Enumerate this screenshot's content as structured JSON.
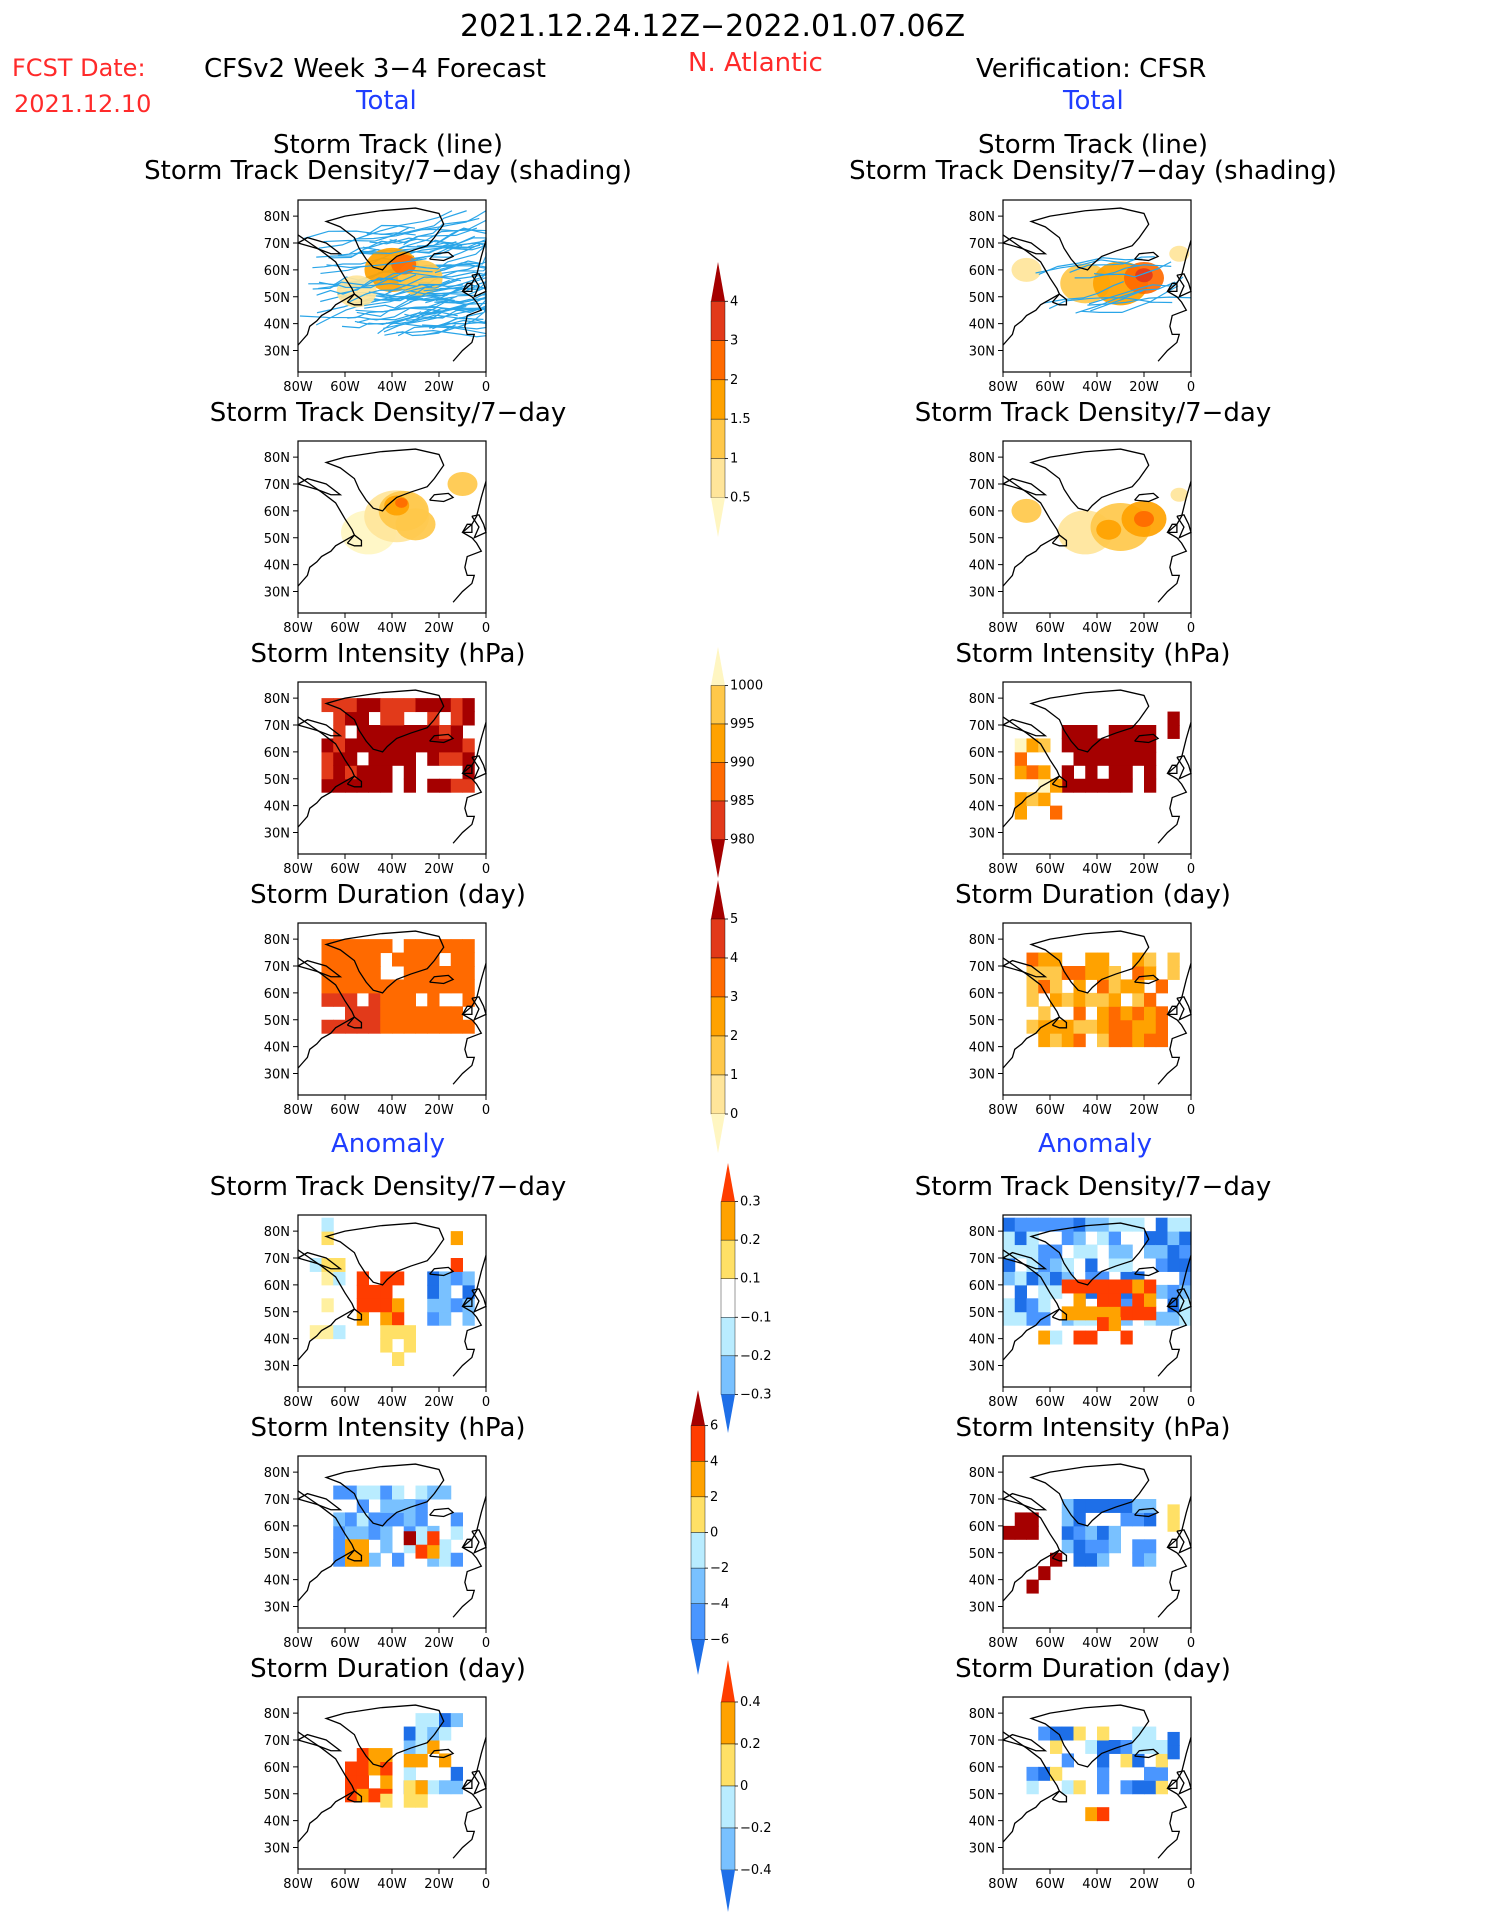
{
  "header": {
    "period": "2021.12.24.12Z−2022.01.07.06Z",
    "region": "N. Atlantic",
    "fcst_label": "FCST Date:",
    "fcst_date": "2021.12.10",
    "left_title": "CFSv2 Week 3−4 Forecast",
    "right_title": "Verification: CFSR",
    "total_label": "Total",
    "anomaly_label": "Anomaly"
  },
  "titles": {
    "track_line": "Storm Track (line)",
    "track_shading": "Storm Track Density/7−day (shading)",
    "density": "Storm Track Density/7−day",
    "intensity": "Storm Intensity (hPa)",
    "duration": "Storm Duration (day)"
  },
  "axes": {
    "lat_labels": [
      "80N",
      "70N",
      "60N",
      "50N",
      "40N",
      "30N"
    ],
    "lon_labels": [
      "80W",
      "60W",
      "40W",
      "20W",
      "0"
    ]
  },
  "colorbars": [
    {
      "id": "density_total",
      "labels": [
        "4",
        "3",
        "2",
        "1.5",
        "1",
        "0.5"
      ],
      "colors": [
        "#a50000",
        "#e23a1a",
        "#ff6a00",
        "#ffa200",
        "#ffc84a",
        "#ffe59a",
        "#fff6c2"
      ]
    },
    {
      "id": "intensity_total",
      "labels": [
        "1000",
        "995",
        "990",
        "985",
        "980"
      ],
      "colors": [
        "#fff6c2",
        "#ffc84a",
        "#ffa200",
        "#ff6a00",
        "#e23a1a",
        "#a50000"
      ]
    },
    {
      "id": "duration_total",
      "labels": [
        "5",
        "4",
        "3",
        "2",
        "1",
        "0"
      ],
      "colors": [
        "#a50000",
        "#e23a1a",
        "#ff6a00",
        "#ffa200",
        "#ffc84a",
        "#ffe59a",
        "#fff6c2"
      ]
    },
    {
      "id": "density_anom",
      "labels": [
        "0.3",
        "0.2",
        "0.1",
        "−0.1",
        "−0.2",
        "−0.3"
      ],
      "colors": [
        "#ff3d00",
        "#ffa200",
        "#ffe066",
        "#ffffff",
        "#b9ecff",
        "#79c1ff",
        "#1e6fe8"
      ]
    },
    {
      "id": "intensity_anom",
      "labels": [
        "6",
        "4",
        "2",
        "0",
        "−2",
        "−4",
        "−6"
      ],
      "colors": [
        "#a50000",
        "#ff3d00",
        "#ffa200",
        "#ffe066",
        "#b9ecff",
        "#79c1ff",
        "#4a96ff",
        "#1e6fe8"
      ]
    },
    {
      "id": "duration_anom",
      "labels": [
        "0.4",
        "0.2",
        "0",
        "−0.2",
        "−0.4"
      ],
      "colors": [
        "#ff3d00",
        "#ffa200",
        "#ffe066",
        "#b9ecff",
        "#79c1ff",
        "#1e6fe8"
      ]
    }
  ],
  "chart_data": [
    {
      "type": "heatmap",
      "title": "Storm Track (line) / Storm Track Density/7−day (shading)",
      "side": "forecast",
      "section": "Total",
      "blobs": [
        {
          "lon": -40,
          "lat": 60,
          "level": 2
        },
        {
          "lon": -28,
          "lat": 58,
          "level": 1.5
        },
        {
          "lon": -55,
          "lat": 52,
          "level": 1
        },
        {
          "lon": -15,
          "lat": 68,
          "level": 1
        }
      ]
    },
    {
      "type": "heatmap",
      "title": "Storm Track (line) / Storm Track Density/7−day (shading)",
      "side": "verification",
      "section": "Total",
      "blobs": [
        {
          "lon": -30,
          "lat": 55,
          "level": 2
        },
        {
          "lon": -20,
          "lat": 57,
          "level": 3
        },
        {
          "lon": -45,
          "lat": 55,
          "level": 1.5
        },
        {
          "lon": -70,
          "lat": 60,
          "level": 1
        }
      ]
    },
    {
      "type": "heatmap",
      "title": "Storm Track Density/7−day",
      "side": "forecast",
      "section": "Total",
      "blobs": [
        {
          "lon": -38,
          "lat": 62,
          "level": 2
        },
        {
          "lon": -30,
          "lat": 56,
          "level": 1.5
        },
        {
          "lon": -10,
          "lat": 70,
          "level": 1
        },
        {
          "lon": -55,
          "lat": 52,
          "level": 0.5
        }
      ]
    },
    {
      "type": "heatmap",
      "title": "Storm Track Density/7−day",
      "side": "verification",
      "section": "Total",
      "blobs": [
        {
          "lon": -20,
          "lat": 57,
          "level": 2
        },
        {
          "lon": -30,
          "lat": 55,
          "level": 1.5
        },
        {
          "lon": -45,
          "lat": 52,
          "level": 1
        },
        {
          "lon": -70,
          "lat": 60,
          "level": 1
        }
      ]
    },
    {
      "type": "heatmap",
      "title": "Storm Intensity (hPa)",
      "side": "forecast",
      "section": "Total",
      "lon_range": [
        -70,
        -5
      ],
      "lat_range": [
        45,
        78
      ],
      "dominant_value": 980
    },
    {
      "type": "heatmap",
      "title": "Storm Intensity (hPa)",
      "side": "verification",
      "section": "Total",
      "lon_range": [
        -60,
        -15
      ],
      "lat_range": [
        45,
        70
      ],
      "dominant_value": 980
    },
    {
      "type": "heatmap",
      "title": "Storm Duration (day)",
      "side": "forecast",
      "section": "Total",
      "lon_range": [
        -70,
        -5
      ],
      "lat_range": [
        45,
        78
      ],
      "dominant_value": 3
    },
    {
      "type": "heatmap",
      "title": "Storm Duration (day)",
      "side": "verification",
      "section": "Total",
      "lon_range": [
        -70,
        -10
      ],
      "lat_range": [
        40,
        70
      ],
      "dominant_value": 2
    },
    {
      "type": "heatmap",
      "title": "Storm Track Density/7−day",
      "side": "forecast",
      "section": "Anomaly",
      "positive_region": [
        -50,
        -35,
        45,
        65
      ],
      "negative_region": [
        -25,
        -5,
        45,
        65
      ]
    },
    {
      "type": "heatmap",
      "title": "Storm Track Density/7−day",
      "side": "verification",
      "section": "Anomaly",
      "positive_region": [
        -50,
        -15,
        48,
        58
      ],
      "negative_region": [
        -75,
        -55,
        45,
        75
      ]
    },
    {
      "type": "heatmap",
      "title": "Storm Intensity (hPa)",
      "side": "forecast",
      "section": "Anomaly",
      "positive_region": [
        -30,
        -20,
        48,
        55
      ],
      "negative_region": [
        -55,
        -20,
        45,
        68
      ]
    },
    {
      "type": "heatmap",
      "title": "Storm Intensity (hPa)",
      "side": "verification",
      "section": "Anomaly",
      "positive_region": [
        -75,
        -65,
        55,
        62
      ],
      "negative_region": [
        -55,
        -15,
        45,
        68
      ]
    },
    {
      "type": "heatmap",
      "title": "Storm Duration (day)",
      "side": "forecast",
      "section": "Anomaly",
      "positive_region": [
        -60,
        -40,
        48,
        65
      ],
      "negative_region": [
        -35,
        -10,
        50,
        75
      ]
    },
    {
      "type": "heatmap",
      "title": "Storm Duration (day)",
      "side": "verification",
      "section": "Anomaly",
      "positive_region": [
        -55,
        -35,
        40,
        50
      ],
      "negative_region": [
        -70,
        -10,
        50,
        72
      ]
    }
  ]
}
